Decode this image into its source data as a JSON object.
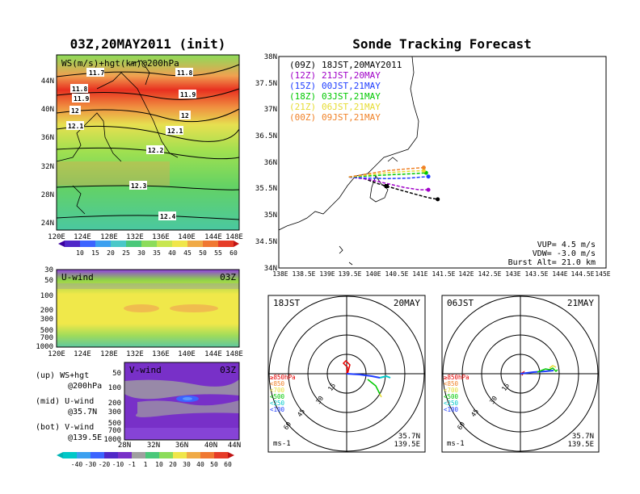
{
  "left_title": "03Z,20MAY2011 (init)",
  "right_title": "Sonde Tracking Forecast",
  "top_panel": {
    "label": "WS(m/s)+hgt(km)@200hPa",
    "lat_ticks": [
      "44N",
      "40N",
      "36N",
      "32N",
      "28N",
      "24N"
    ],
    "lon_ticks": [
      "120E",
      "124E",
      "128E",
      "132E",
      "136E",
      "140E",
      "144E",
      "148E"
    ],
    "contours": [
      "11.7",
      "11.8",
      "11.8",
      "11.9",
      "11.9",
      "12",
      "12",
      "12.1",
      "12.1",
      "12.2",
      "12.3",
      "12.4"
    ]
  },
  "ws_colorbar": [
    "10",
    "15",
    "20",
    "25",
    "30",
    "35",
    "40",
    "45",
    "50",
    "55",
    "60"
  ],
  "mid_panel": {
    "label": "U-wind",
    "time": "03Z",
    "p_ticks": [
      "30",
      "50",
      "100",
      "200",
      "300",
      "500",
      "700",
      "1000"
    ],
    "lon_ticks": [
      "120E",
      "124E",
      "128E",
      "132E",
      "136E",
      "140E",
      "144E",
      "148E"
    ]
  },
  "bot_panel": {
    "label": "V-wind",
    "time": "03Z",
    "p_ticks": [
      "50",
      "100",
      "200",
      "300",
      "500",
      "700",
      "1000"
    ],
    "lat_ticks": [
      "28N",
      "32N",
      "36N",
      "40N",
      "44N"
    ]
  },
  "wind_colorbar": [
    "-40",
    "-30",
    "-20",
    "-10",
    "-1",
    "1",
    "10",
    "20",
    "30",
    "40",
    "50",
    "60"
  ],
  "legend_text": [
    {
      "a": "(up) WS+hgt",
      "b": "@200hPa"
    },
    {
      "a": "(mid) U-wind",
      "b": "@35.7N"
    },
    {
      "a": "(bot) V-wind",
      "b": "@139.5E"
    }
  ],
  "track_map": {
    "lat_ticks": [
      "38N",
      "37.5N",
      "37N",
      "36.5N",
      "36N",
      "35.5N",
      "35N",
      "34.5N",
      "34N"
    ],
    "lon_ticks": [
      "138E",
      "138.5E",
      "139E",
      "139.5E",
      "140E",
      "140.5E",
      "141E",
      "141.5E",
      "142E",
      "142.5E",
      "143E",
      "143.5E",
      "144E",
      "144.5E",
      "145E"
    ],
    "legend": [
      {
        "utc": "(09Z)",
        "jst": "18JST,20MAY2011",
        "color": "#000000"
      },
      {
        "utc": "(12Z)",
        "jst": "21JST,20MAY",
        "color": "#a000c8"
      },
      {
        "utc": "(15Z)",
        "jst": "00JST,21MAY",
        "color": "#1e3cff"
      },
      {
        "utc": "(18Z)",
        "jst": "03JST,21MAY",
        "color": "#00c800"
      },
      {
        "utc": "(21Z)",
        "jst": "06JST,21MAY",
        "color": "#e6dc32"
      },
      {
        "utc": "(00Z)",
        "jst": "09JST,21MAY",
        "color": "#f08228"
      }
    ],
    "params": [
      "VUP= 4.5 m/s",
      "VDW= -3.0 m/s",
      "Burst Alt= 21.0 km"
    ]
  },
  "hodo_left": {
    "time": "18JST",
    "date": "20MAY",
    "rings": [
      "15",
      "30",
      "45",
      "60"
    ],
    "lat": "35.7N",
    "lon": "139.5E",
    "unit": "ms-1"
  },
  "hodo_right": {
    "time": "06JST",
    "date": "21MAY",
    "rings": [
      "15",
      "30",
      "45",
      "60"
    ],
    "lat": "35.7N",
    "lon": "139.5E",
    "unit": "ms-1"
  },
  "hodo_levels": [
    {
      "text": "≥850hPa",
      "color": "#e60000"
    },
    {
      "text": "<850",
      "color": "#f08228"
    },
    {
      "text": "<700",
      "color": "#e6dc32"
    },
    {
      "text": "<500",
      "color": "#00c800"
    },
    {
      "text": "<250",
      "color": "#00c8c8"
    },
    {
      "text": "<100",
      "color": "#1e3cff"
    }
  ],
  "chart_data": {
    "type": "line",
    "title": "Sonde Tracking Forecast",
    "xlim": [
      138,
      145
    ],
    "ylim": [
      34,
      38
    ],
    "launch": {
      "lon": 139.5,
      "lat": 35.72
    },
    "series": [
      {
        "name": "(09Z) 18JST,20MAY2011",
        "color": "#000000",
        "dashed": true,
        "points": [
          [
            139.5,
            35.72
          ],
          [
            139.8,
            35.7
          ],
          [
            140.1,
            35.6
          ],
          [
            140.5,
            35.5
          ],
          [
            140.9,
            35.4
          ],
          [
            141.2,
            35.33
          ],
          [
            141.4,
            35.3
          ]
        ]
      },
      {
        "name": "(12Z) 21JST,20MAY",
        "color": "#a000c8",
        "dashed": true,
        "points": [
          [
            139.5,
            35.72
          ],
          [
            139.9,
            35.68
          ],
          [
            140.3,
            35.6
          ],
          [
            140.7,
            35.52
          ],
          [
            141.0,
            35.48
          ],
          [
            141.2,
            35.48
          ]
        ]
      },
      {
        "name": "(15Z) 00JST,21MAY",
        "color": "#1e3cff",
        "dashed": true,
        "points": [
          [
            139.5,
            35.72
          ],
          [
            139.9,
            35.7
          ],
          [
            140.3,
            35.69
          ],
          [
            140.8,
            35.7
          ],
          [
            141.2,
            35.73
          ]
        ]
      },
      {
        "name": "(18Z) 03JST,21MAY",
        "color": "#00c800",
        "dashed": true,
        "points": [
          [
            139.5,
            35.72
          ],
          [
            139.9,
            35.74
          ],
          [
            140.3,
            35.76
          ],
          [
            140.8,
            35.78
          ],
          [
            141.15,
            35.8
          ]
        ]
      },
      {
        "name": "(21Z) 06JST,21MAY",
        "color": "#e6dc32",
        "dashed": true,
        "points": [
          [
            139.5,
            35.72
          ],
          [
            139.9,
            35.76
          ],
          [
            140.3,
            35.8
          ],
          [
            140.8,
            35.83
          ],
          [
            141.1,
            35.84
          ]
        ]
      },
      {
        "name": "(00Z) 09JST,21MAY",
        "color": "#f08228",
        "dashed": true,
        "points": [
          [
            139.5,
            35.72
          ],
          [
            139.9,
            35.78
          ],
          [
            140.3,
            35.84
          ],
          [
            140.8,
            35.88
          ],
          [
            141.1,
            35.9
          ]
        ]
      }
    ]
  }
}
